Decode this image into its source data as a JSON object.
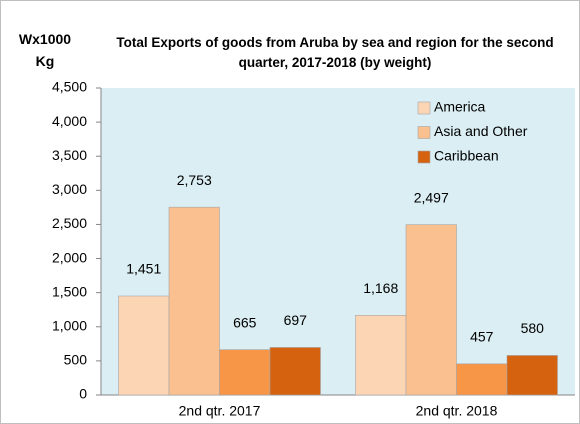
{
  "chart_data": {
    "type": "bar",
    "title": "Total Exports of goods from Aruba by sea and region for the second quarter, 2017-2018 (by weight)",
    "y_label": "Wx1000 Kg",
    "categories": [
      "2nd qtr. 2017",
      "2nd qtr. 2018"
    ],
    "series": [
      {
        "name": "America",
        "color": "#fcd5b5",
        "values": [
          1451,
          1168
        ],
        "value_labels": [
          "1,451",
          "1,168"
        ]
      },
      {
        "name": "Asia and Other",
        "color": "#fac090",
        "values": [
          2753,
          2497
        ],
        "value_labels": [
          "2,753",
          "2,497"
        ]
      },
      {
        "color": "#f79646",
        "values": [
          665,
          457
        ]
      },
      {
        "name": "Caribbean",
        "color": "#d4620f",
        "values": [
          697,
          580
        ]
      }
    ],
    "ylim": [
      0,
      4500
    ],
    "yticks": [
      0,
      500,
      {
        "value": 1000,
        "label": "1,000"
      },
      {
        "value": 1500,
        "label": "1,500"
      },
      {
        "value": 2000,
        "label": "2,000"
      },
      {
        "value": 2500,
        "label": "2,500"
      },
      {
        "value": 3000,
        "label": "3,000"
      },
      {
        "value": 3500,
        "label": "3,500"
      },
      {
        "value": 4000,
        "label": "4,000"
      },
      {
        "value": 4500,
        "label": "4,500"
      }
    ],
    "legend": "top-right"
  }
}
